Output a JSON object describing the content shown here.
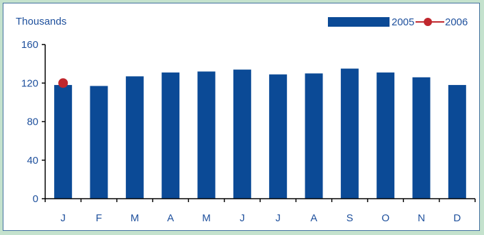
{
  "chart_data": {
    "type": "bar",
    "ylabel": "Thousands",
    "categories": [
      "J",
      "F",
      "M",
      "A",
      "M",
      "J",
      "J",
      "A",
      "S",
      "O",
      "N",
      "D"
    ],
    "yticks": [
      "0",
      "40",
      "80",
      "120",
      "160"
    ],
    "ylim": [
      0,
      160
    ],
    "grid": false,
    "legend_position": "top-right",
    "series": [
      {
        "name": "2005",
        "type": "bar",
        "color": "#0b4a96",
        "values": [
          118,
          117,
          127,
          131,
          132,
          134,
          129,
          130,
          135,
          131,
          126,
          118
        ]
      },
      {
        "name": "2006",
        "type": "line-marker",
        "color": "#c0272d",
        "values": [
          120,
          null,
          null,
          null,
          null,
          null,
          null,
          null,
          null,
          null,
          null,
          null
        ]
      }
    ]
  }
}
